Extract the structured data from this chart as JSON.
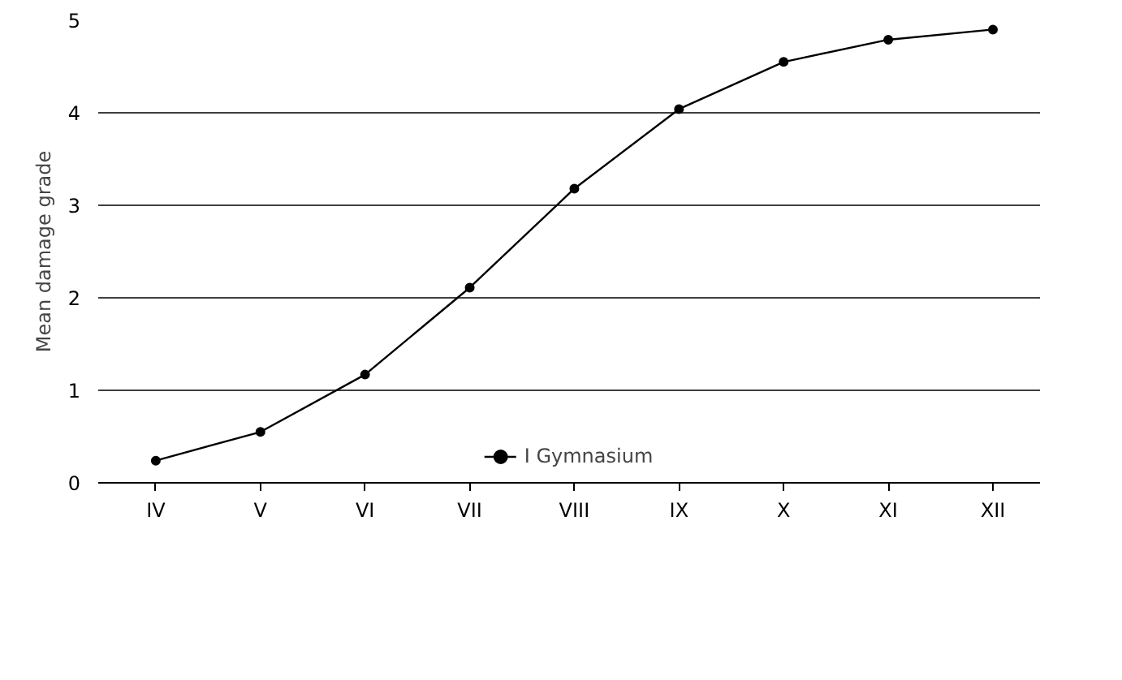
{
  "chart_data": {
    "type": "line",
    "ylabel": "Mean damage grade",
    "categories": [
      "IV",
      "V",
      "VI",
      "VII",
      "VIII",
      "IX",
      "X",
      "XI",
      "XII"
    ],
    "series": [
      {
        "name": "I Gymnasium",
        "color": "#000000",
        "values": [
          0.24,
          0.55,
          1.17,
          2.11,
          3.18,
          4.04,
          4.55,
          4.79,
          4.9
        ]
      }
    ],
    "ylim": [
      0,
      5
    ],
    "yticks": [
      0,
      1,
      2,
      3,
      4,
      5
    ],
    "grid": "y",
    "legend": "bottom",
    "marker": "circle",
    "line_style": "solid"
  }
}
